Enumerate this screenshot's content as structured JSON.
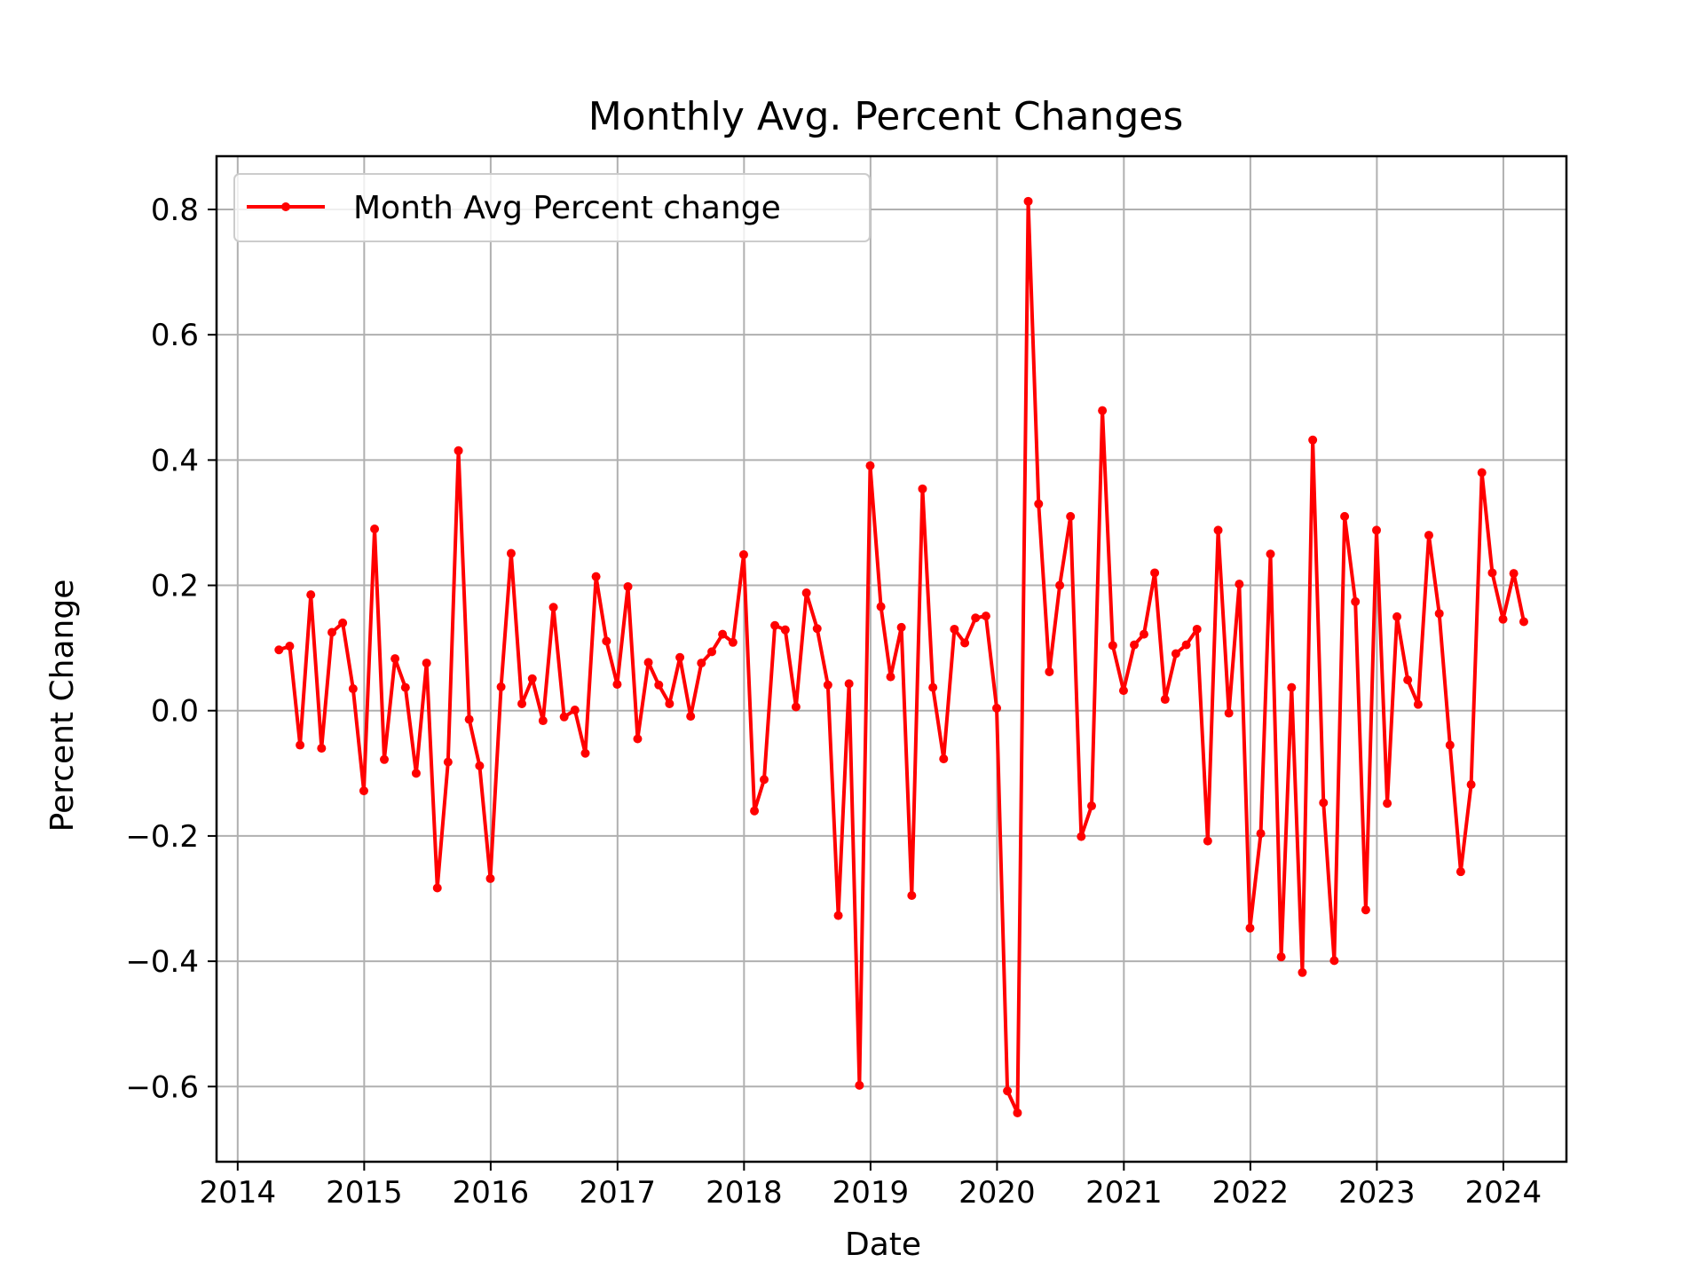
{
  "chart_data": {
    "type": "line",
    "title": "Monthly Avg. Percent Changes",
    "xlabel": "Date",
    "ylabel": "Percent Change",
    "xlim": [
      "2013-11-01",
      "2024-07-01"
    ],
    "ylim": [
      -0.72,
      0.885
    ],
    "x_ticks": [
      {
        "date": "2014-01-01",
        "label": "2014"
      },
      {
        "date": "2015-01-01",
        "label": "2015"
      },
      {
        "date": "2016-01-01",
        "label": "2016"
      },
      {
        "date": "2017-01-01",
        "label": "2017"
      },
      {
        "date": "2018-01-01",
        "label": "2018"
      },
      {
        "date": "2019-01-01",
        "label": "2019"
      },
      {
        "date": "2020-01-01",
        "label": "2020"
      },
      {
        "date": "2021-01-01",
        "label": "2021"
      },
      {
        "date": "2022-01-01",
        "label": "2022"
      },
      {
        "date": "2023-01-01",
        "label": "2023"
      },
      {
        "date": "2024-01-01",
        "label": "2024"
      }
    ],
    "y_ticks": [
      {
        "value": 0.8,
        "label": "0.8"
      },
      {
        "value": 0.6,
        "label": "0.6"
      },
      {
        "value": 0.4,
        "label": "0.4"
      },
      {
        "value": 0.2,
        "label": "0.2"
      },
      {
        "value": 0.0,
        "label": "0.0"
      },
      {
        "value": -0.2,
        "label": "−0.2"
      },
      {
        "value": -0.4,
        "label": "−0.4"
      },
      {
        "value": -0.6,
        "label": "−0.6"
      }
    ],
    "grid": true,
    "legend_position": "upper-left",
    "series": [
      {
        "name": "Month Avg Percent change",
        "color": "#ff0000",
        "marker": "dot",
        "x": [
          "2014-04-30",
          "2014-05-31",
          "2014-06-30",
          "2014-07-31",
          "2014-08-31",
          "2014-09-30",
          "2014-10-31",
          "2014-11-30",
          "2014-12-31",
          "2015-01-31",
          "2015-02-28",
          "2015-03-31",
          "2015-04-30",
          "2015-05-31",
          "2015-06-30",
          "2015-07-31",
          "2015-08-31",
          "2015-09-30",
          "2015-10-31",
          "2015-11-30",
          "2015-12-31",
          "2016-01-31",
          "2016-02-29",
          "2016-03-31",
          "2016-04-30",
          "2016-05-31",
          "2016-06-30",
          "2016-07-31",
          "2016-08-31",
          "2016-09-30",
          "2016-10-31",
          "2016-11-30",
          "2016-12-31",
          "2017-01-31",
          "2017-02-28",
          "2017-03-31",
          "2017-04-30",
          "2017-05-31",
          "2017-06-30",
          "2017-07-31",
          "2017-08-31",
          "2017-09-30",
          "2017-10-31",
          "2017-11-30",
          "2017-12-31",
          "2018-01-31",
          "2018-02-28",
          "2018-03-31",
          "2018-04-30",
          "2018-05-31",
          "2018-06-30",
          "2018-07-31",
          "2018-08-31",
          "2018-09-30",
          "2018-10-31",
          "2018-11-30",
          "2018-12-31",
          "2019-01-31",
          "2019-02-28",
          "2019-03-31",
          "2019-04-30",
          "2019-05-31",
          "2019-06-30",
          "2019-07-31",
          "2019-08-31",
          "2019-09-30",
          "2019-10-31",
          "2019-11-30",
          "2019-12-31",
          "2020-01-31",
          "2020-02-29",
          "2020-03-31",
          "2020-04-30",
          "2020-05-31",
          "2020-06-30",
          "2020-07-31",
          "2020-08-31",
          "2020-09-30",
          "2020-10-31",
          "2020-11-30",
          "2020-12-31",
          "2021-01-31",
          "2021-02-28",
          "2021-03-31",
          "2021-04-30",
          "2021-05-31",
          "2021-06-30",
          "2021-07-31",
          "2021-08-31",
          "2021-09-30",
          "2021-10-31",
          "2021-11-30",
          "2021-12-31",
          "2022-01-31",
          "2022-02-28",
          "2022-03-31",
          "2022-04-30",
          "2022-05-31",
          "2022-06-30",
          "2022-07-31",
          "2022-08-31",
          "2022-09-30",
          "2022-10-31",
          "2022-11-30",
          "2022-12-31",
          "2023-01-31",
          "2023-02-28",
          "2023-03-31",
          "2023-04-30",
          "2023-05-31",
          "2023-06-30",
          "2023-07-31",
          "2023-08-31",
          "2023-09-30",
          "2023-10-31",
          "2023-11-30",
          "2023-12-31",
          "2024-01-31",
          "2024-02-29"
        ],
        "values": [
          0.097,
          0.103,
          -0.055,
          0.185,
          -0.06,
          0.125,
          0.14,
          0.035,
          -0.128,
          0.29,
          -0.078,
          0.083,
          0.037,
          -0.1,
          0.076,
          -0.283,
          -0.082,
          0.415,
          -0.014,
          -0.088,
          -0.268,
          0.038,
          0.251,
          0.011,
          0.051,
          -0.016,
          0.165,
          -0.01,
          0.001,
          -0.068,
          0.214,
          0.111,
          0.042,
          0.198,
          -0.045,
          0.077,
          0.041,
          0.011,
          0.085,
          -0.009,
          0.076,
          0.094,
          0.122,
          0.109,
          0.249,
          -0.16,
          -0.11,
          0.136,
          0.129,
          0.006,
          0.188,
          0.131,
          0.041,
          -0.327,
          0.043,
          -0.598,
          0.391,
          0.166,
          0.054,
          0.133,
          -0.295,
          0.354,
          0.037,
          -0.077,
          0.13,
          0.108,
          0.148,
          0.151,
          0.004,
          -0.607,
          -0.642,
          0.813,
          0.33,
          0.062,
          0.2,
          0.31,
          -0.201,
          -0.152,
          0.479,
          0.104,
          0.032,
          0.105,
          0.122,
          0.22,
          0.018,
          0.091,
          0.105,
          0.13,
          -0.208,
          0.288,
          -0.004,
          0.202,
          -0.347,
          -0.196,
          0.25,
          -0.393,
          0.037,
          -0.418,
          0.432,
          -0.147,
          -0.399,
          0.31,
          0.174,
          -0.318,
          0.288,
          -0.148,
          0.15,
          0.049,
          0.01,
          0.28,
          0.155,
          -0.055,
          -0.257,
          -0.118,
          0.38,
          0.22,
          0.146,
          0.219,
          0.142
        ]
      }
    ]
  }
}
